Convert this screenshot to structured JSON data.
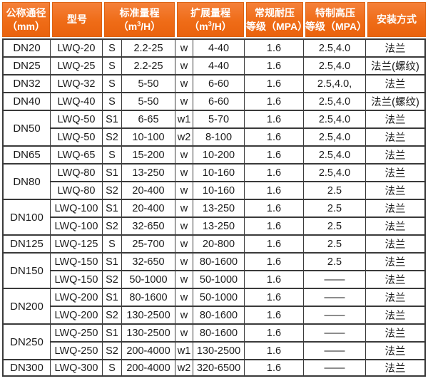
{
  "colors": {
    "header_bg": "#ef6c17",
    "header_text": "#ffffff",
    "grid_border": "#3a3a3a",
    "body_text": "#1b1b1b",
    "body_bg": "#ffffff"
  },
  "table": {
    "header": {
      "diameter": {
        "line1": "公称通径",
        "line2": "（mm）"
      },
      "model": "型号",
      "standard_range": {
        "line1": "标准量程",
        "unit_prefix": "（m",
        "unit_sup": "3",
        "unit_suffix": "/H）"
      },
      "extended_range": {
        "line1": "扩展量程",
        "unit_prefix": "（m",
        "unit_sup": "3",
        "unit_suffix": "/H）"
      },
      "regular_pressure": {
        "line1": "常规耐压",
        "line2": "等级（MPA）"
      },
      "special_pressure": {
        "line1": "特制高压",
        "line2": "等级（MPA）"
      },
      "installation": "安装方式"
    },
    "rows": [
      {
        "diameter": "DN20",
        "rowspan": 1,
        "model": "LWQ-20",
        "std_code": "S",
        "std_range": "2.2-25",
        "ext_code": "w",
        "ext_range": "4-40",
        "regular_mpa": "1.6",
        "special_mpa": "2.5,4.0",
        "install": "法兰"
      },
      {
        "diameter": "DN25",
        "rowspan": 1,
        "model": "LWQ-25",
        "std_code": "S",
        "std_range": "2.2-25",
        "ext_code": "w",
        "ext_range": "4-40",
        "regular_mpa": "1.6",
        "special_mpa": "2.5,4.0",
        "install": "法兰(螺纹)"
      },
      {
        "diameter": "DN32",
        "rowspan": 1,
        "model": "LWQ-32",
        "std_code": "S",
        "std_range": "5-50",
        "ext_code": "w",
        "ext_range": "6-60",
        "regular_mpa": "1.6",
        "special_mpa": "2.5,4.0,",
        "install": "法兰"
      },
      {
        "diameter": "DN40",
        "rowspan": 1,
        "model": "LWQ-40",
        "std_code": "S",
        "std_range": "5-50",
        "ext_code": "w",
        "ext_range": "6-60",
        "regular_mpa": "1.6",
        "special_mpa": "2.5,4.0",
        "install": "法兰(螺纹)"
      },
      {
        "diameter": "DN50",
        "rowspan": 2,
        "model": "LWQ-50",
        "std_code": "S1",
        "std_range": "6-65",
        "ext_code": "w1",
        "ext_range": "5-70",
        "regular_mpa": "1.6",
        "special_mpa": "2.5,4.0",
        "install": "法兰"
      },
      {
        "diameter": null,
        "model": "LWQ-50",
        "std_code": "S2",
        "std_range": "10-100",
        "ext_code": "w2",
        "ext_range": "8-100",
        "regular_mpa": "1.6",
        "special_mpa": "2.5,4.0",
        "install": "法兰"
      },
      {
        "diameter": "DN65",
        "rowspan": 1,
        "model": "LWQ-65",
        "std_code": "S",
        "std_range": "15-200",
        "ext_code": "w",
        "ext_range": "10-200",
        "regular_mpa": "1.6",
        "special_mpa": "2.5,4.0",
        "install": "法兰"
      },
      {
        "diameter": "DN80",
        "rowspan": 2,
        "model": "LWQ-80",
        "std_code": "S1",
        "std_range": "13-250",
        "ext_code": "w",
        "ext_range": "10-160",
        "regular_mpa": "1.6",
        "special_mpa": "2.5,4.0",
        "install": "法兰"
      },
      {
        "diameter": null,
        "model": "LWQ-80",
        "std_code": "S2",
        "std_range": "20-400",
        "ext_code": "w",
        "ext_range": "10-160",
        "regular_mpa": "1.6",
        "special_mpa": "2.5",
        "install": "法兰"
      },
      {
        "diameter": "DN100",
        "rowspan": 2,
        "model": "LWQ-100",
        "std_code": "S1",
        "std_range": "20-400",
        "ext_code": "w",
        "ext_range": "13-250",
        "regular_mpa": "1.6",
        "special_mpa": "2.5",
        "install": "法兰"
      },
      {
        "diameter": null,
        "model": "LWQ-100",
        "std_code": "S2",
        "std_range": "32-650",
        "ext_code": "w",
        "ext_range": "13-250",
        "regular_mpa": "1.6",
        "special_mpa": "2.5",
        "install": "法兰"
      },
      {
        "diameter": "DN125",
        "rowspan": 1,
        "model": "LWQ-125",
        "std_code": "S",
        "std_range": "25-700",
        "ext_code": "w",
        "ext_range": "20-800",
        "regular_mpa": "1.6",
        "special_mpa": "2.5",
        "install": "法兰"
      },
      {
        "diameter": "DN150",
        "rowspan": 2,
        "model": "LWQ-150",
        "std_code": "S1",
        "std_range": "32-650",
        "ext_code": "w",
        "ext_range": "80-1600",
        "regular_mpa": "1.6",
        "special_mpa": "2.5",
        "install": "法兰"
      },
      {
        "diameter": null,
        "model": "LWQ-150",
        "std_code": "S2",
        "std_range": "50-1000",
        "ext_code": "w",
        "ext_range": "50-1000",
        "regular_mpa": "1.6",
        "special_mpa": "——",
        "install": "法兰"
      },
      {
        "diameter": "DN200",
        "rowspan": 2,
        "model": "LWQ-200",
        "std_code": "S1",
        "std_range": "80-1600",
        "ext_code": "w",
        "ext_range": "50-1000",
        "regular_mpa": "1.6",
        "special_mpa": "——",
        "install": "法兰"
      },
      {
        "diameter": null,
        "model": "LWQ-200",
        "std_code": "S2",
        "std_range": "130-2500",
        "ext_code": "w",
        "ext_range": "80-1600",
        "regular_mpa": "1.6",
        "special_mpa": "——",
        "install": "法兰"
      },
      {
        "diameter": "DN250",
        "rowspan": 2,
        "model": "LWQ-250",
        "std_code": "S1",
        "std_range": "130-2500",
        "ext_code": "w",
        "ext_range": "80-1600",
        "regular_mpa": "1.6",
        "special_mpa": "——",
        "install": "法兰"
      },
      {
        "diameter": null,
        "model": "LWQ-250",
        "std_code": "S2",
        "std_range": "200-4000",
        "ext_code": "w1",
        "ext_range": "130-2500",
        "regular_mpa": "1.6",
        "special_mpa": "——",
        "install": "法兰"
      },
      {
        "diameter": "DN300",
        "rowspan": 1,
        "model": "LWQ-300",
        "std_code": "S",
        "std_range": "200-4000",
        "ext_code": "w2",
        "ext_range": "320-6500",
        "regular_mpa": "1.6",
        "special_mpa": "——",
        "install": "法兰"
      }
    ]
  }
}
